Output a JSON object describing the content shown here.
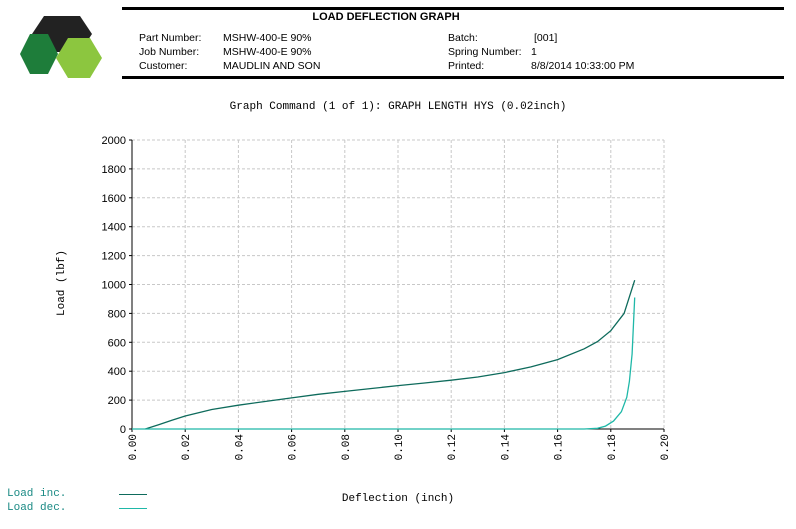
{
  "header": {
    "title": "LOAD DEFLECTION GRAPH",
    "part_number_label": "Part Number:",
    "part_number": "MSHW-400-E 90%",
    "job_number_label": "Job Number:",
    "job_number": "MSHW-400-E 90%",
    "customer_label": "Customer:",
    "customer": "MAUDLIN AND SON",
    "batch_label": "Batch:",
    "batch": "[001]",
    "spring_number_label": "Spring Number:",
    "spring_number": "1",
    "printed_label": "Printed:",
    "printed": "8/8/2014 10:33:00 PM"
  },
  "logo": {
    "icon": "hexagon-logo-icon",
    "colors": [
      "#222222",
      "#1e7d3a",
      "#8cc63f"
    ]
  },
  "graph_command": "Graph Command (1 of 1): GRAPH LENGTH HYS (0.02inch)",
  "legend": [
    {
      "label": "Load inc.",
      "color": "#0e6b5c"
    },
    {
      "label": "Load dec.",
      "color": "#1fb8a8"
    }
  ],
  "chart_data": {
    "type": "line",
    "title": "",
    "xlabel": "Deflection (inch)",
    "ylabel": "Load (lbf)",
    "xlim": [
      0.0,
      0.2
    ],
    "ylim": [
      0,
      2000
    ],
    "x_ticks": [
      "0.00",
      "0.02",
      "0.04",
      "0.06",
      "0.08",
      "0.10",
      "0.12",
      "0.14",
      "0.16",
      "0.18",
      "0.20"
    ],
    "y_ticks": [
      "0",
      "200",
      "400",
      "600",
      "800",
      "1000",
      "1200",
      "1400",
      "1600",
      "1800",
      "2000"
    ],
    "grid": true,
    "legend_position": "bottom-left",
    "series": [
      {
        "name": "Load inc.",
        "color": "#0e6b5c",
        "x": [
          0.005,
          0.01,
          0.015,
          0.02,
          0.03,
          0.04,
          0.05,
          0.06,
          0.07,
          0.08,
          0.09,
          0.1,
          0.11,
          0.12,
          0.13,
          0.14,
          0.15,
          0.16,
          0.17,
          0.175,
          0.18,
          0.185,
          0.189
        ],
        "y": [
          0,
          30,
          60,
          90,
          135,
          165,
          190,
          215,
          240,
          260,
          280,
          300,
          318,
          338,
          360,
          390,
          430,
          480,
          555,
          605,
          680,
          800,
          1030
        ]
      },
      {
        "name": "Load dec.",
        "color": "#1fb8a8",
        "x": [
          0.0,
          0.05,
          0.1,
          0.15,
          0.17,
          0.175,
          0.178,
          0.181,
          0.184,
          0.186,
          0.187,
          0.188,
          0.189
        ],
        "y": [
          0,
          0,
          0,
          0,
          0,
          5,
          20,
          55,
          120,
          220,
          330,
          520,
          910
        ]
      }
    ]
  }
}
